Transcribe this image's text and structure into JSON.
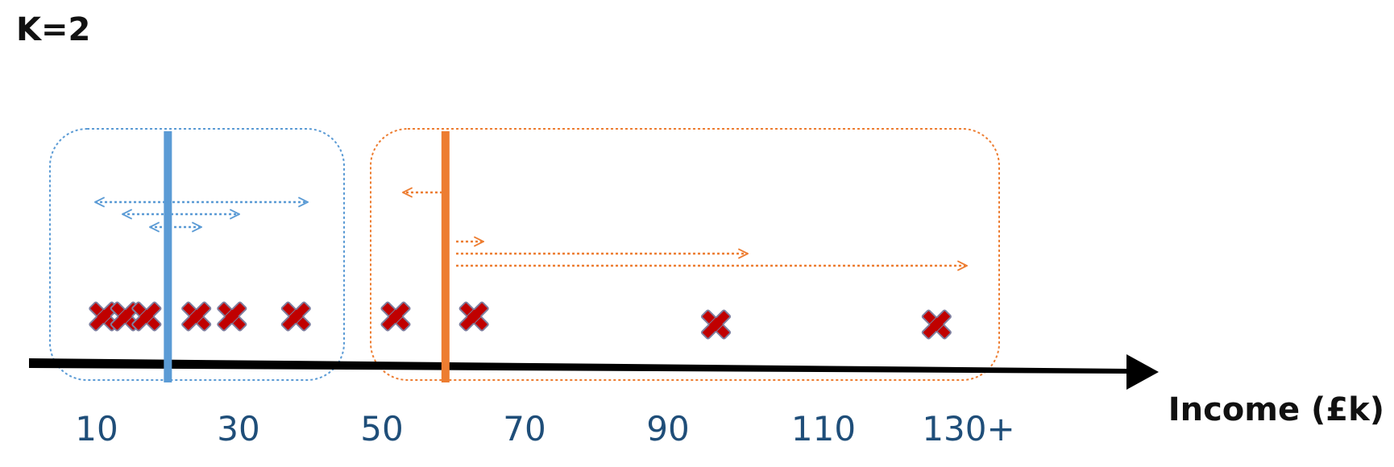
{
  "title": "K=2",
  "axis": {
    "label": "Income (£k)",
    "ticks": [
      "10",
      "30",
      "50",
      "70",
      "90",
      "110",
      "130+"
    ],
    "color": "#000000"
  },
  "points": [
    {
      "income": 11,
      "cluster": 1
    },
    {
      "income": 14,
      "cluster": 1
    },
    {
      "income": 17,
      "cluster": 1
    },
    {
      "income": 24,
      "cluster": 1
    },
    {
      "income": 29,
      "cluster": 1
    },
    {
      "income": 38,
      "cluster": 1
    },
    {
      "income": 52,
      "cluster": 2
    },
    {
      "income": 63,
      "cluster": 2
    },
    {
      "income": 97,
      "cluster": 2
    },
    {
      "income": 128,
      "cluster": 2
    }
  ],
  "clusters": [
    {
      "id": 1,
      "color": "#5b9bd5",
      "centroid": 20
    },
    {
      "id": 2,
      "color": "#ed7d31",
      "centroid": 59
    }
  ],
  "marker": {
    "fill": "#c00000",
    "stroke": "#7f7f9f",
    "shape": "x-cross"
  }
}
